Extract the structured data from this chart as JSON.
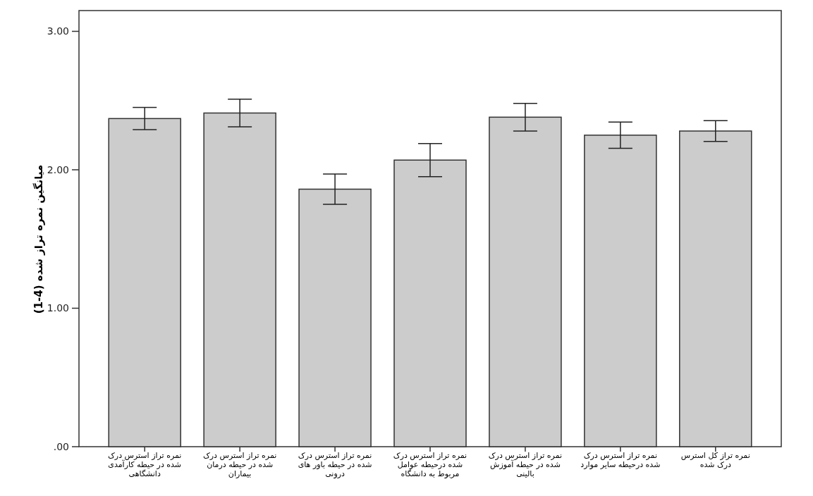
{
  "chart_data": {
    "type": "bar",
    "ylabel": "میانگین نمره تراز شده (1-4)",
    "categories": [
      "نمره تراز استرس درک شده در حیطه کارآمدی دانشگاهی",
      "نمره تراز استرس درک شده در حیطه درمان بیماران",
      "نمره تراز استرس درک شده در حیطه باور های درونی",
      "نمره تراز استرس درک شده درحیطه عوامل مربوط به دانشگاه",
      "نمره تراز استرس درک شده در حیطه آموزش بالینی",
      "نمره تراز استرس درک شده درحیطه سایر موارد",
      "نمره تراز کل استرس درک شده"
    ],
    "values": [
      2.37,
      2.41,
      1.86,
      2.07,
      2.38,
      2.25,
      2.28
    ],
    "errors": [
      0.08,
      0.1,
      0.11,
      0.12,
      0.1,
      0.095,
      0.075
    ],
    "color": "#cccccc",
    "ylim": [
      0,
      3.15
    ],
    "yticks": [
      {
        "value": 0,
        "label": ".00"
      },
      {
        "value": 1,
        "label": "1.00"
      },
      {
        "value": 2,
        "label": "2.00"
      },
      {
        "value": 3,
        "label": "3.00"
      }
    ],
    "grid": false
  }
}
